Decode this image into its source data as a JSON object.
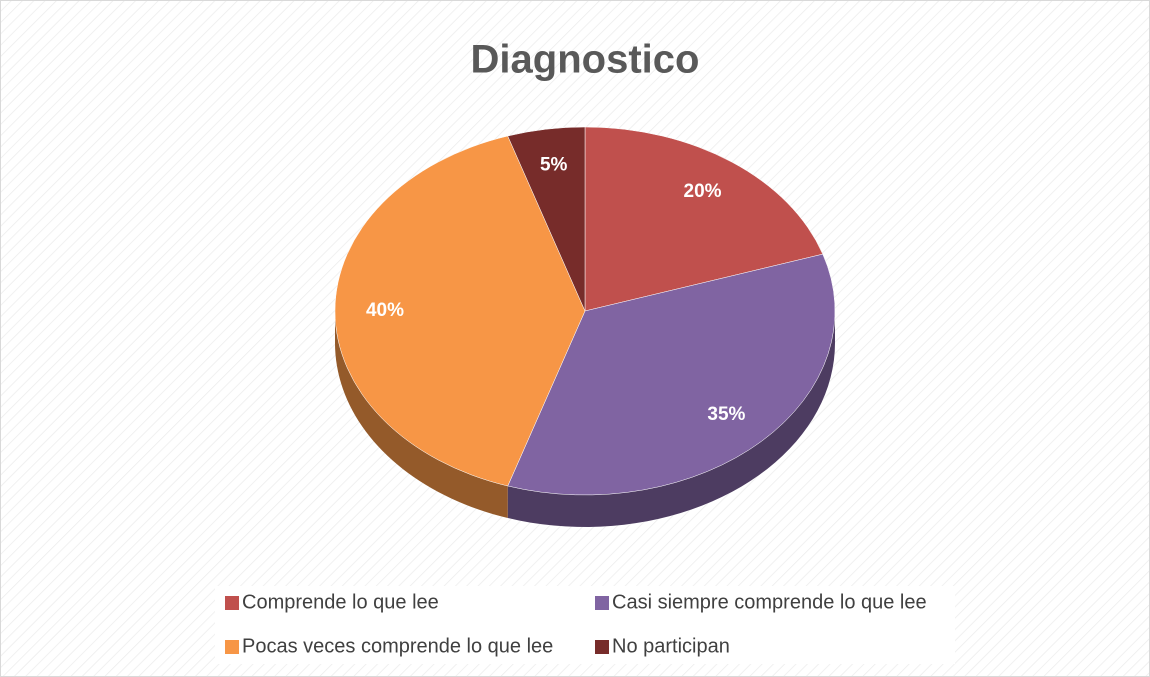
{
  "chart_data": {
    "type": "pie",
    "title": "Diagnostico",
    "categories": [
      "Comprende lo que lee",
      "Casi siempre comprende lo que lee",
      "Pocas veces comprende lo que lee",
      "No participan"
    ],
    "values": [
      20,
      35,
      40,
      5
    ],
    "value_labels": [
      "20%",
      "35%",
      "40%",
      "5%"
    ],
    "colors": [
      "#c0504d",
      "#8064a2",
      "#f79646",
      "#772c2a"
    ],
    "legend": "bottom"
  }
}
